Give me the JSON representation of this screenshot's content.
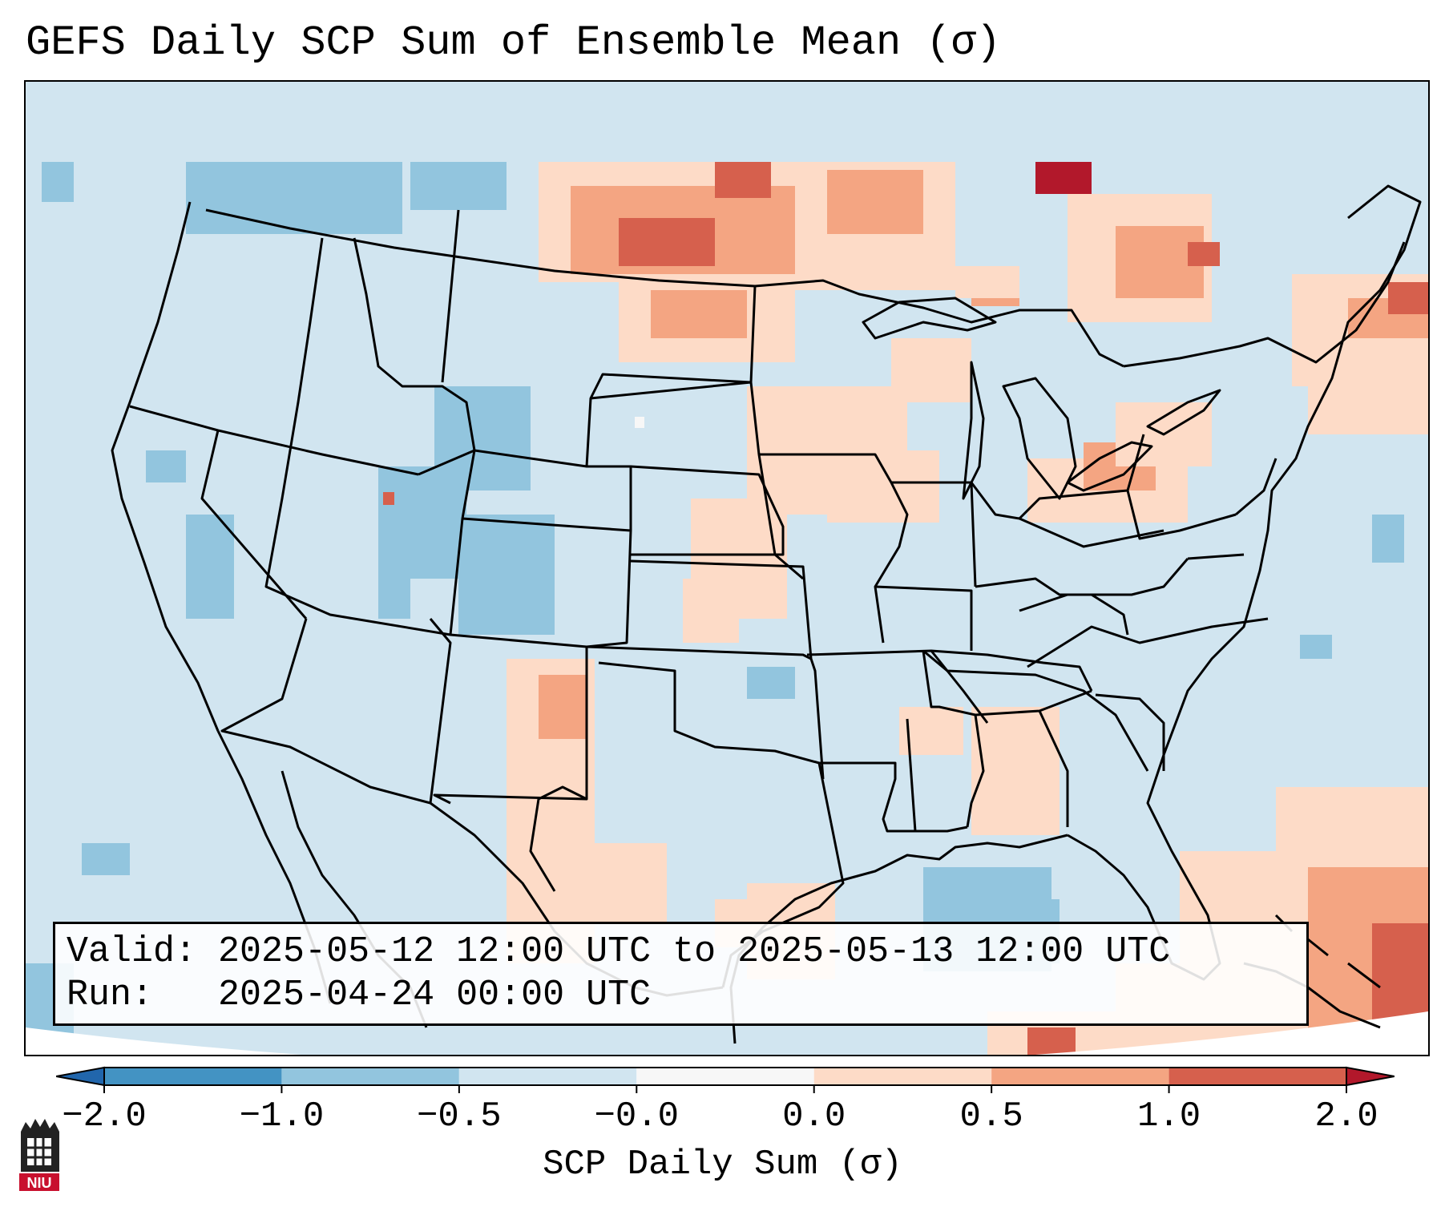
{
  "title": "GEFS Daily SCP Sum of Ensemble Mean (σ)",
  "info": {
    "valid_label": "Valid:",
    "valid_value": "2025-05-12 12:00 UTC to 2025-05-13 12:00 UTC",
    "run_label": "Run:",
    "run_value": "2025-04-24 00:00 UTC"
  },
  "colorbar": {
    "label": "SCP Daily Sum (σ)",
    "ticks": [
      "−2.0",
      "−1.0",
      "−0.5",
      "−0.0",
      "0.0",
      "0.5",
      "1.0",
      "2.0"
    ],
    "colors": [
      "#4393c3",
      "#92c5de",
      "#d1e5f0",
      "#f7f7f7",
      "#fddbc7",
      "#f4a582",
      "#d6604d"
    ],
    "under_color": "#2166ac",
    "over_color": "#b2182b"
  },
  "logo": {
    "text": "NIU",
    "icon": "university-tower-icon"
  },
  "map": {
    "projection": "lambert-conformal",
    "region": "CONUS",
    "background_class": "-0.5 to -0.0"
  }
}
